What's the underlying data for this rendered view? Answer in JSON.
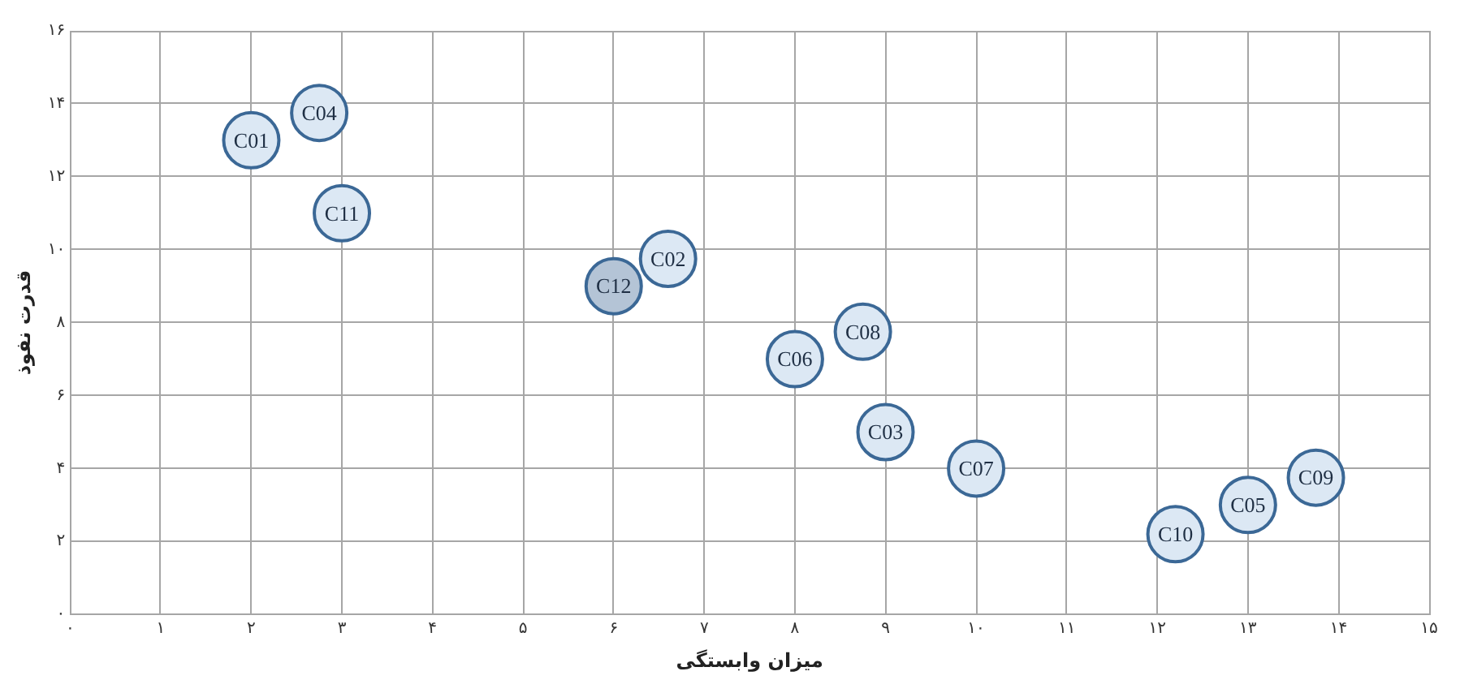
{
  "chart_data": {
    "type": "scatter",
    "xlabel": "میزان وابستگی",
    "ylabel": "قدرت نفوذ",
    "xlim": [
      0,
      15
    ],
    "ylim": [
      0,
      16
    ],
    "xticks": [
      {
        "value": 0,
        "label": "۰"
      },
      {
        "value": 1,
        "label": "۱"
      },
      {
        "value": 2,
        "label": "۲"
      },
      {
        "value": 3,
        "label": "۳"
      },
      {
        "value": 4,
        "label": "۴"
      },
      {
        "value": 5,
        "label": "۵"
      },
      {
        "value": 6,
        "label": "۶"
      },
      {
        "value": 7,
        "label": "۷"
      },
      {
        "value": 8,
        "label": "۸"
      },
      {
        "value": 9,
        "label": "۹"
      },
      {
        "value": 10,
        "label": "۱۰"
      },
      {
        "value": 11,
        "label": "۱۱"
      },
      {
        "value": 12,
        "label": "۱۲"
      },
      {
        "value": 13,
        "label": "۱۳"
      },
      {
        "value": 14,
        "label": "۱۴"
      },
      {
        "value": 15,
        "label": "۱۵"
      }
    ],
    "yticks": [
      {
        "value": 0,
        "label": "۰"
      },
      {
        "value": 2,
        "label": "۲"
      },
      {
        "value": 4,
        "label": "۴"
      },
      {
        "value": 6,
        "label": "۶"
      },
      {
        "value": 8,
        "label": "۸"
      },
      {
        "value": 10,
        "label": "۱۰"
      },
      {
        "value": 12,
        "label": "۱۲"
      },
      {
        "value": 14,
        "label": "۱۴"
      },
      {
        "value": 16,
        "label": "۱۶"
      }
    ],
    "grid": true,
    "legend": false,
    "marker": "circle",
    "series": [
      {
        "name": "C01",
        "color": "#dce8f4",
        "x": [
          2
        ],
        "values": [
          13
        ]
      },
      {
        "name": "C04",
        "color": "#dce8f4",
        "x": [
          2.75
        ],
        "values": [
          13.75
        ]
      },
      {
        "name": "C11",
        "color": "#dce8f4",
        "x": [
          3
        ],
        "values": [
          11
        ]
      },
      {
        "name": "C12",
        "color": "#b4c4d6",
        "x": [
          6
        ],
        "values": [
          9
        ]
      },
      {
        "name": "C02",
        "color": "#dce8f4",
        "x": [
          6.6
        ],
        "values": [
          9.75
        ]
      },
      {
        "name": "C06",
        "color": "#dce8f4",
        "x": [
          8
        ],
        "values": [
          7
        ]
      },
      {
        "name": "C08",
        "color": "#dce8f4",
        "x": [
          8.75
        ],
        "values": [
          7.75
        ]
      },
      {
        "name": "C03",
        "color": "#dce8f4",
        "x": [
          9
        ],
        "values": [
          5
        ]
      },
      {
        "name": "C07",
        "color": "#dce8f4",
        "x": [
          10
        ],
        "values": [
          4
        ]
      },
      {
        "name": "C10",
        "color": "#dce8f4",
        "x": [
          12.2
        ],
        "values": [
          2.2
        ]
      },
      {
        "name": "C05",
        "color": "#dce8f4",
        "x": [
          13
        ],
        "values": [
          3
        ]
      },
      {
        "name": "C09",
        "color": "#dce8f4",
        "x": [
          13.75
        ],
        "values": [
          3.75
        ]
      }
    ]
  }
}
